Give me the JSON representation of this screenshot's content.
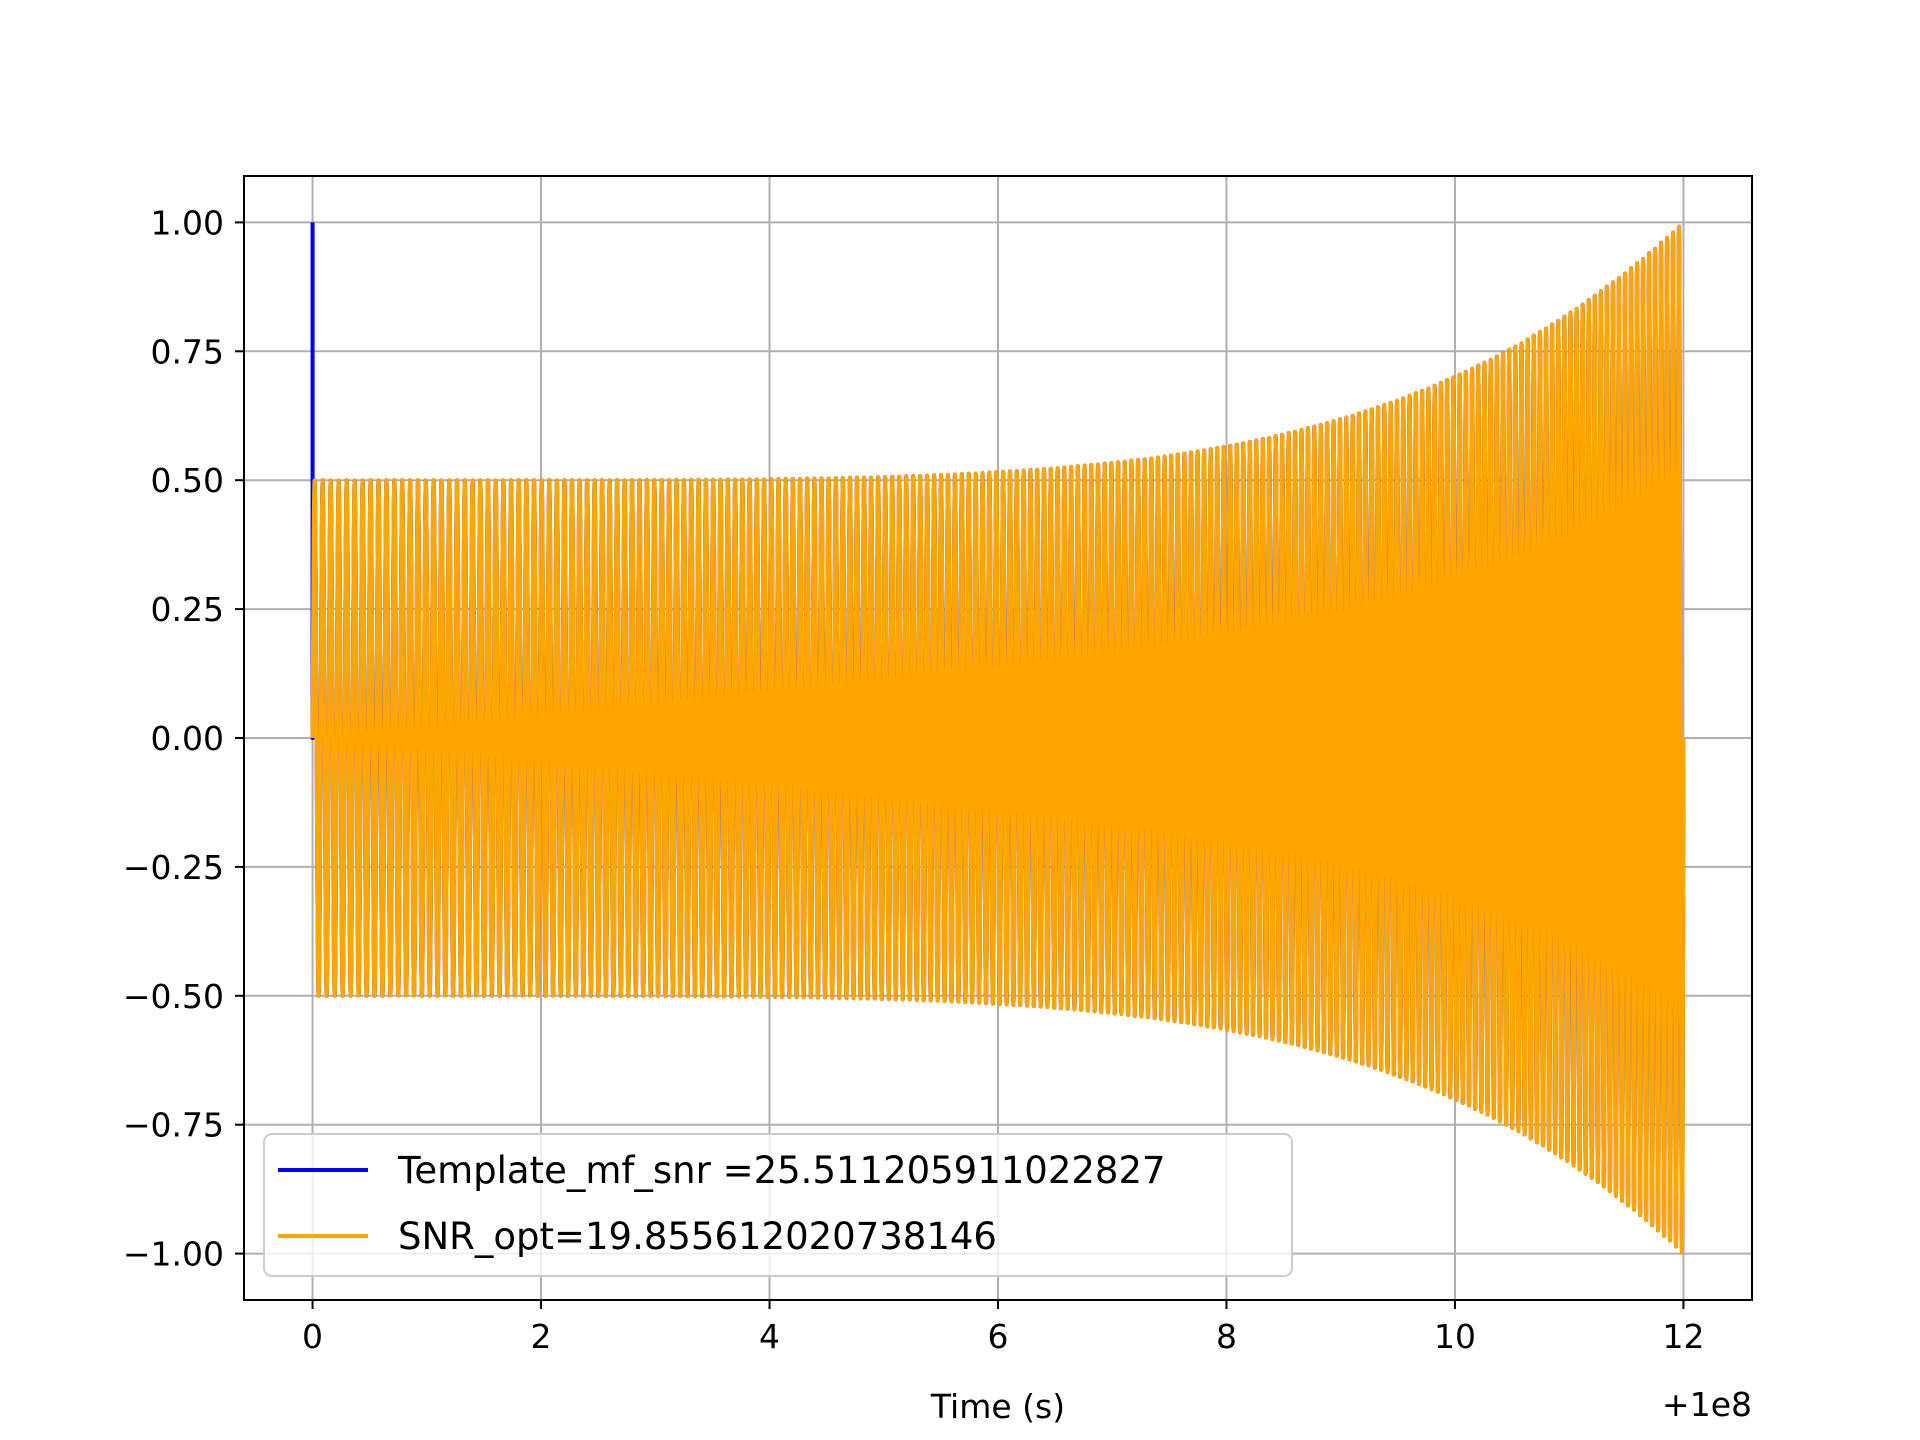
{
  "chart_data": {
    "type": "line",
    "title": "",
    "xlabel": "Time (s)",
    "ylabel": "",
    "x_offset_label": "+1e8",
    "xlim": [
      -0.6,
      12.6
    ],
    "ylim": [
      -1.09,
      1.09
    ],
    "xticks": [
      0,
      2,
      4,
      6,
      8,
      10,
      12
    ],
    "xtick_labels": [
      "0",
      "2",
      "4",
      "6",
      "8",
      "10",
      "12"
    ],
    "yticks": [
      1.0,
      0.75,
      0.5,
      0.25,
      0.0,
      -0.25,
      -0.5,
      -0.75,
      -1.0
    ],
    "ytick_labels": [
      "1.00",
      "0.75",
      "0.50",
      "0.25",
      "0.00",
      "−0.25",
      "−0.50",
      "−0.75",
      "−1.00"
    ],
    "grid": true,
    "legend_position": "lower-left",
    "series": [
      {
        "name": "Template_mf_snr =25.511205911022827",
        "color": "#0000ff",
        "x_range": [
          0,
          12
        ],
        "amplitude_start": 0.5,
        "amplitude_end": 1.0,
        "initial_peak": 1.0,
        "cycles": 200
      },
      {
        "name": "SNR_opt=19.855612020738146",
        "color": "#ffa500",
        "x_range": [
          0,
          12
        ],
        "amplitude_start": 0.5,
        "amplitude_end": 1.0,
        "cycles": 200
      }
    ]
  }
}
